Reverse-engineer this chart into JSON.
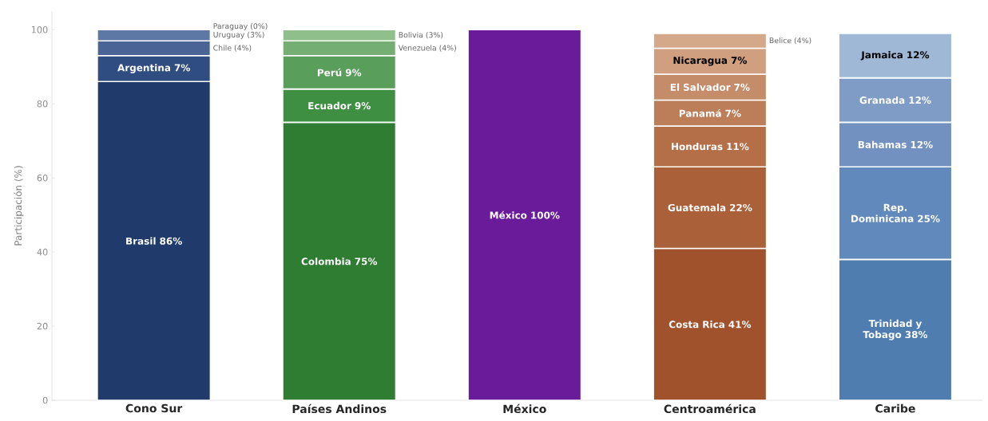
{
  "chart_data": {
    "type": "bar",
    "stacked": true,
    "categories": [
      "Cono Sur",
      "Países Andinos",
      "México",
      "Centroamérica",
      "Caribe"
    ],
    "ylabel": "Participación (%)",
    "ylim": [
      0,
      105
    ],
    "yticks": [
      0,
      20,
      40,
      60,
      80,
      100
    ],
    "grid": false,
    "series": [
      {
        "values": [
          86,
          75,
          100,
          41,
          38
        ],
        "colors": [
          "#1f3a6b",
          "#2e7d32",
          "#6a1b9a",
          "#a0522d",
          "#4f7db0"
        ],
        "value_labels": [
          "Brasil 86%",
          "Colombia 75%",
          "México 100%",
          "Costa Rica 41%",
          "Trinidad y Tobago 38%"
        ]
      },
      {
        "values": [
          7,
          9,
          null,
          22,
          25
        ],
        "colors": [
          "#2f4d80",
          "#3f8f42",
          null,
          "#aa6039",
          "#6289bb"
        ],
        "value_labels": [
          "Argentina 7%",
          "Ecuador 9%",
          null,
          "Guatemala 22%",
          "Rep. Dominicana 25%"
        ]
      },
      {
        "values": [
          4,
          9,
          null,
          11,
          12
        ],
        "colors": [
          "#4a6495",
          "#5a9e5b",
          null,
          "#b46f48",
          "#7290c0"
        ],
        "value_labels": [
          null,
          "Perú 9%",
          null,
          "Honduras 11%",
          "Bahamas 12%"
        ]
      },
      {
        "values": [
          3,
          4,
          null,
          7,
          12
        ],
        "colors": [
          "#5e78a5",
          "#74ae73",
          null,
          "#bc7e58",
          "#7f9cc6"
        ],
        "value_labels": [
          null,
          null,
          null,
          "Panamá 7%",
          "Granada 12%"
        ]
      },
      {
        "values": [
          0,
          3,
          null,
          7,
          12
        ],
        "colors": [
          "#7d90b8",
          "#8fc08c",
          null,
          "#c48c68",
          "#9fb8d6"
        ],
        "value_labels": [
          null,
          null,
          null,
          "El Salvador 7%",
          "Jamaica 12%"
        ]
      },
      {
        "values": [
          null,
          null,
          null,
          7,
          null
        ],
        "colors": [
          null,
          null,
          null,
          "#d09f80",
          null
        ],
        "value_labels": [
          null,
          null,
          null,
          "Nicaragua 7%",
          null
        ]
      },
      {
        "values": [
          null,
          null,
          null,
          4,
          null
        ],
        "colors": [
          null,
          null,
          null,
          "#d4a98a",
          null
        ]
      }
    ],
    "annotations": [
      "Chile (4%)",
      "Uruguay (3%)",
      "Paraguay (0%)",
      "Venezuela (4%)",
      "Bolivia (3%)",
      "Belice (4%)"
    ]
  }
}
